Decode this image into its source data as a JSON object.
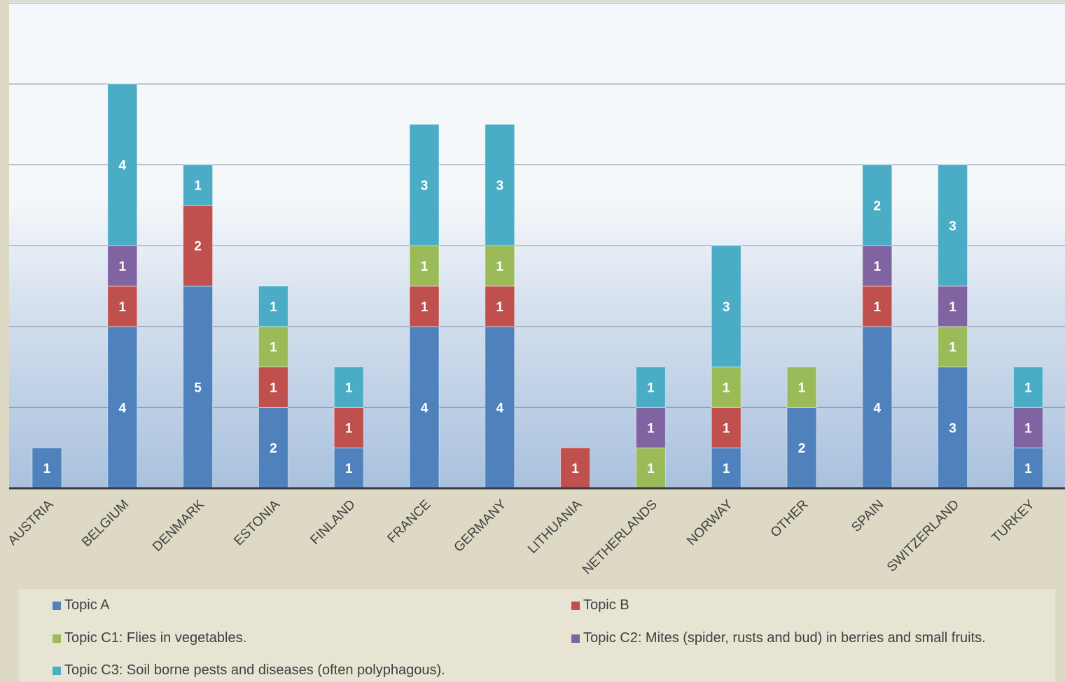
{
  "chart_data": {
    "type": "bar",
    "stacked": true,
    "categories": [
      "AUSTRIA",
      "BELGIUM",
      "DENMARK",
      "ESTONIA",
      "FINLAND",
      "FRANCE",
      "GERMANY",
      "LITHUANIA",
      "NETHERLANDS",
      "NORWAY",
      "OTHER",
      "SPAIN",
      "SWITZERLAND",
      "TURKEY"
    ],
    "series": [
      {
        "name": "Topic A",
        "color": "#4f81bd",
        "values": [
          1,
          4,
          5,
          2,
          1,
          4,
          4,
          0,
          0,
          1,
          2,
          4,
          3,
          1
        ]
      },
      {
        "name": "Topic B",
        "color": "#c0504d",
        "values": [
          0,
          1,
          2,
          1,
          1,
          1,
          1,
          1,
          0,
          1,
          0,
          1,
          0,
          0
        ]
      },
      {
        "name": "Topic C1: Flies in vegetables.",
        "color": "#9bbb59",
        "values": [
          0,
          0,
          0,
          1,
          0,
          1,
          1,
          0,
          1,
          1,
          1,
          0,
          1,
          0
        ]
      },
      {
        "name": "Topic C2: Mites (spider, rusts and bud) in berries and small fruits.",
        "color": "#8064a2",
        "values": [
          0,
          1,
          0,
          0,
          0,
          0,
          0,
          0,
          1,
          0,
          0,
          1,
          1,
          1
        ]
      },
      {
        "name": "Topic C3: Soil borne pests and diseases (often polyphagous).",
        "color": "#4bacc6",
        "values": [
          0,
          4,
          1,
          1,
          1,
          3,
          3,
          0,
          1,
          3,
          0,
          2,
          3,
          1
        ]
      }
    ],
    "ylim": [
      0,
      12
    ],
    "grid": true,
    "legend_position": "bottom"
  }
}
